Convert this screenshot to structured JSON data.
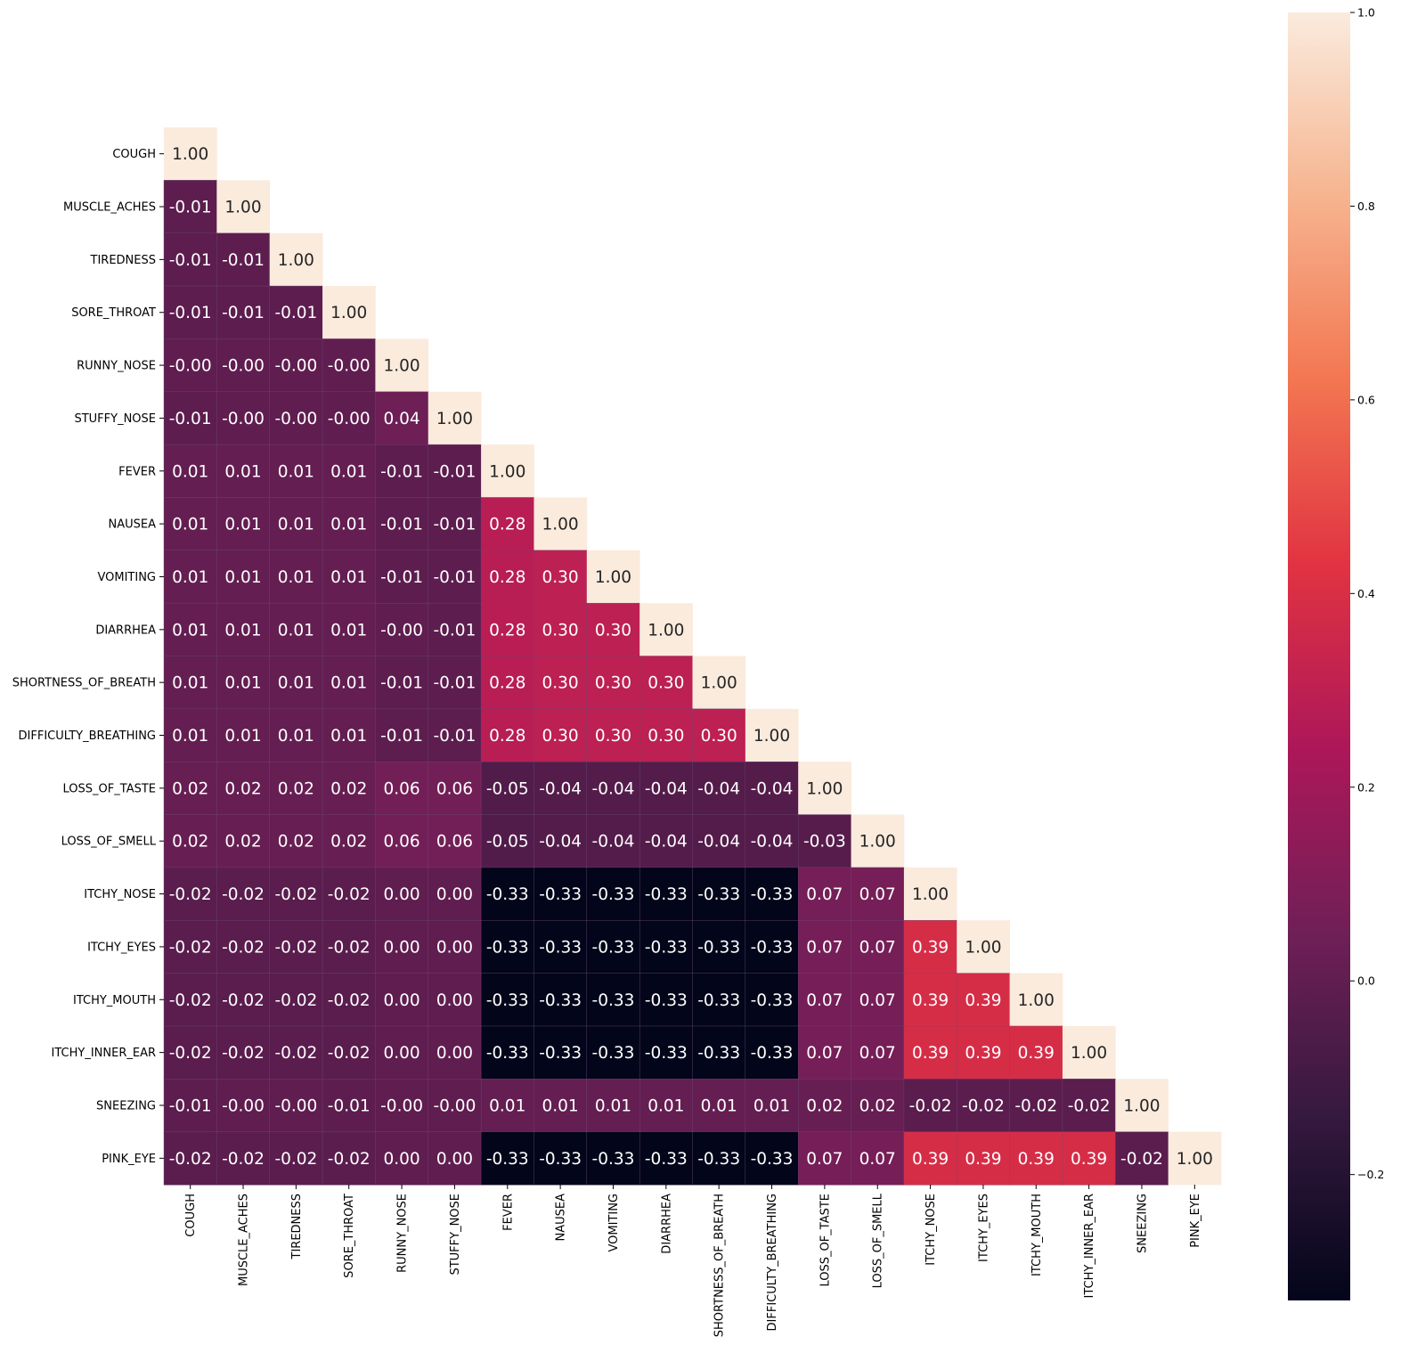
{
  "chart_data": {
    "type": "heatmap",
    "title": "",
    "xlabel": "",
    "ylabel": "",
    "mask": "lower-triangle",
    "value_format": "2 decimals",
    "labels": [
      "COUGH",
      "MUSCLE_ACHES",
      "TIREDNESS",
      "SORE_THROAT",
      "RUNNY_NOSE",
      "STUFFY_NOSE",
      "FEVER",
      "NAUSEA",
      "VOMITING",
      "DIARRHEA",
      "SHORTNESS_OF_BREATH",
      "DIFFICULTY_BREATHING",
      "LOSS_OF_TASTE",
      "LOSS_OF_SMELL",
      "ITCHY_NOSE",
      "ITCHY_EYES",
      "ITCHY_MOUTH",
      "ITCHY_INNER_EAR",
      "SNEEZING",
      "PINK_EYE"
    ],
    "matrix": [
      [
        1.0
      ],
      [
        -0.01,
        1.0
      ],
      [
        -0.01,
        -0.01,
        1.0
      ],
      [
        -0.01,
        -0.01,
        -0.01,
        1.0
      ],
      [
        -0.001,
        -0.001,
        -0.001,
        -0.001,
        1.0
      ],
      [
        -0.01,
        -0.001,
        -0.001,
        -0.001,
        0.04,
        1.0
      ],
      [
        0.01,
        0.01,
        0.01,
        0.01,
        -0.01,
        -0.01,
        1.0
      ],
      [
        0.01,
        0.01,
        0.01,
        0.01,
        -0.01,
        -0.01,
        0.28,
        1.0
      ],
      [
        0.01,
        0.01,
        0.01,
        0.01,
        -0.01,
        -0.01,
        0.28,
        0.3,
        1.0
      ],
      [
        0.01,
        0.01,
        0.01,
        0.01,
        -0.001,
        -0.01,
        0.28,
        0.3,
        0.3,
        1.0
      ],
      [
        0.01,
        0.01,
        0.01,
        0.01,
        -0.01,
        -0.01,
        0.28,
        0.3,
        0.3,
        0.3,
        1.0
      ],
      [
        0.01,
        0.01,
        0.01,
        0.01,
        -0.01,
        -0.01,
        0.28,
        0.3,
        0.3,
        0.3,
        0.3,
        1.0
      ],
      [
        0.02,
        0.02,
        0.02,
        0.02,
        0.06,
        0.06,
        -0.05,
        -0.04,
        -0.04,
        -0.04,
        -0.04,
        -0.04,
        1.0
      ],
      [
        0.02,
        0.02,
        0.02,
        0.02,
        0.06,
        0.06,
        -0.05,
        -0.04,
        -0.04,
        -0.04,
        -0.04,
        -0.04,
        -0.03,
        1.0
      ],
      [
        -0.02,
        -0.02,
        -0.02,
        -0.02,
        0.0,
        0.0,
        -0.33,
        -0.33,
        -0.33,
        -0.33,
        -0.33,
        -0.33,
        0.07,
        0.07,
        1.0
      ],
      [
        -0.02,
        -0.02,
        -0.02,
        -0.02,
        0.0,
        0.0,
        -0.33,
        -0.33,
        -0.33,
        -0.33,
        -0.33,
        -0.33,
        0.07,
        0.07,
        0.39,
        1.0
      ],
      [
        -0.02,
        -0.02,
        -0.02,
        -0.02,
        0.0,
        0.0,
        -0.33,
        -0.33,
        -0.33,
        -0.33,
        -0.33,
        -0.33,
        0.07,
        0.07,
        0.39,
        0.39,
        1.0
      ],
      [
        -0.02,
        -0.02,
        -0.02,
        -0.02,
        0.0,
        0.0,
        -0.33,
        -0.33,
        -0.33,
        -0.33,
        -0.33,
        -0.33,
        0.07,
        0.07,
        0.39,
        0.39,
        0.39,
        1.0
      ],
      [
        -0.01,
        -0.001,
        -0.001,
        -0.01,
        -0.001,
        -0.001,
        0.01,
        0.01,
        0.01,
        0.01,
        0.01,
        0.01,
        0.02,
        0.02,
        -0.02,
        -0.02,
        -0.02,
        -0.02,
        1.0
      ],
      [
        -0.02,
        -0.02,
        -0.02,
        -0.02,
        0.0,
        0.0,
        -0.33,
        -0.33,
        -0.33,
        -0.33,
        -0.33,
        -0.33,
        0.07,
        0.07,
        0.39,
        0.39,
        0.39,
        0.39,
        -0.02,
        1.0
      ]
    ],
    "colorscale": "rocket",
    "vmin": -0.33,
    "vmax": 1.0,
    "colorbar_ticks": [
      "1.0",
      "0.8",
      "0.6",
      "0.4",
      "0.2",
      "0.0",
      "−0.2"
    ],
    "colorbar_tick_values": [
      1.0,
      0.8,
      0.6,
      0.4,
      0.2,
      0.0,
      -0.2
    ],
    "grid": false,
    "colorbar_placement": "right"
  },
  "colors": {
    "rocket_stops": [
      "#03051a",
      "#35193e",
      "#701f57",
      "#ad1759",
      "#e13342",
      "#f37651",
      "#f6b48f",
      "#faebdd"
    ],
    "text_dark": "#262626",
    "text_light": "#ffffff",
    "cell_border": "#6b4a74"
  }
}
